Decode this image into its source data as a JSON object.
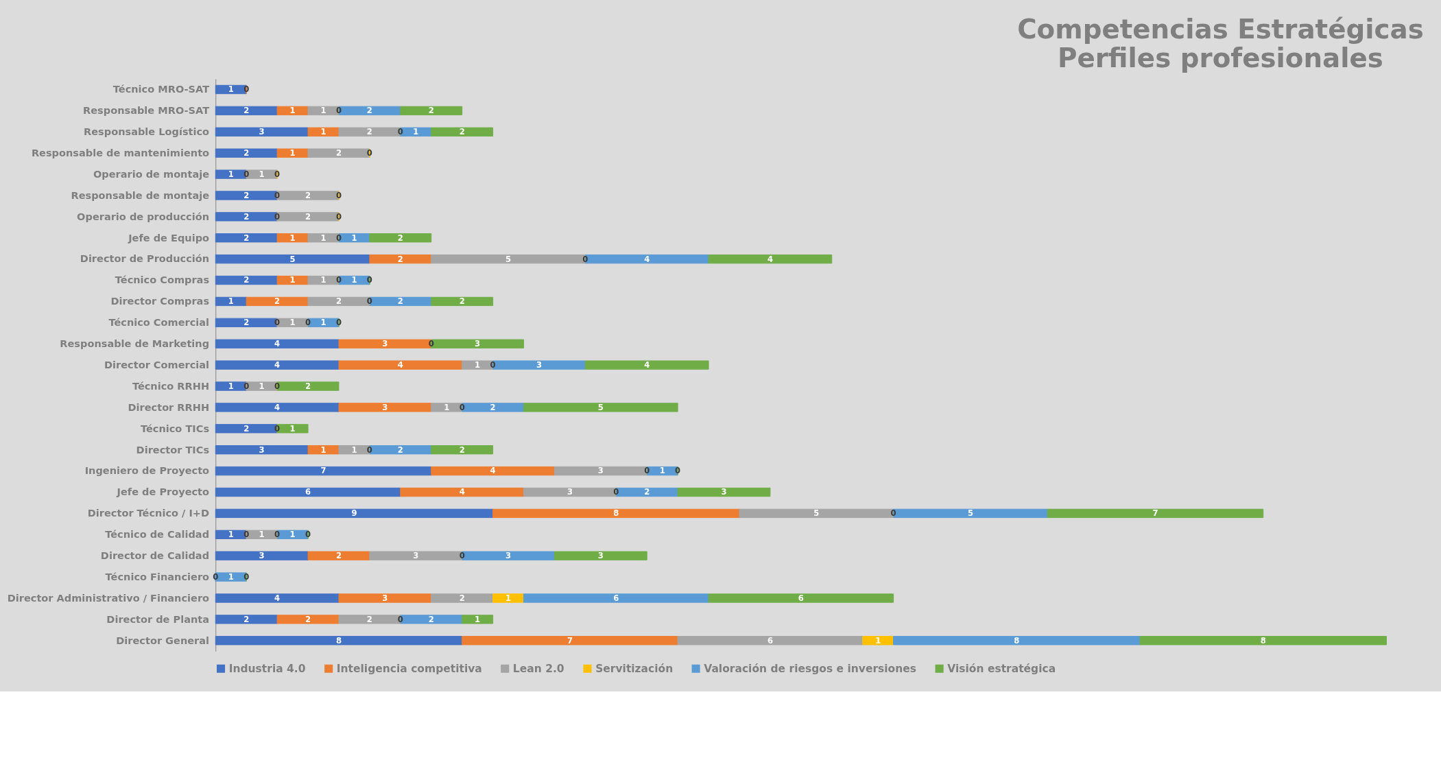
{
  "chart_data": {
    "type": "bar",
    "orientation": "horizontal",
    "stacked": true,
    "data_labels": true,
    "legend": "bottom",
    "tick_labels": "y",
    "title": "Competencias Estratégicas",
    "subtitle": "Perfiles profesionales",
    "categories": [
      "Técnico MRO-SAT",
      "Responsable MRO-SAT",
      "Responsable Logístico",
      "Responsable de mantenimiento",
      "Operario de montaje",
      "Responsable de montaje",
      "Operario de producción",
      "Jefe de Equipo",
      "Director de Producción",
      "Técnico Compras",
      "Director Compras",
      "Técnico Comercial",
      "Responsable de Marketing",
      "Director Comercial",
      "Técnico RRHH",
      "Director RRHH",
      "Técnico TICs",
      "Director TICs",
      "Ingeniero de Proyecto",
      "Jefe de Proyecto",
      "Director Técnico / I+D",
      "Técnico de Calidad",
      "Director de Calidad",
      "Técnico Financiero",
      "Director Administrativo / Financiero",
      "Director de Planta",
      "Director General"
    ],
    "series": [
      {
        "name": "Industria 4.0",
        "color": "#4472c4",
        "values": [
          1,
          2,
          3,
          2,
          1,
          2,
          2,
          2,
          5,
          2,
          1,
          2,
          4,
          4,
          1,
          4,
          2,
          3,
          7,
          6,
          9,
          1,
          3,
          0,
          4,
          2,
          8
        ]
      },
      {
        "name": "Inteligencia competitiva",
        "color": "#ed7d31",
        "values": [
          0,
          1,
          1,
          1,
          0,
          0,
          0,
          1,
          2,
          1,
          2,
          0,
          3,
          4,
          0,
          3,
          0,
          1,
          4,
          4,
          8,
          0,
          2,
          null,
          3,
          2,
          7
        ]
      },
      {
        "name": "Lean 2.0",
        "color": "#a5a5a5",
        "values": [
          null,
          1,
          2,
          2,
          1,
          2,
          2,
          1,
          5,
          1,
          2,
          1,
          0,
          1,
          1,
          1,
          null,
          1,
          3,
          3,
          5,
          1,
          3,
          null,
          2,
          2,
          6
        ]
      },
      {
        "name": "Servitización",
        "color": "#ffc000",
        "values": [
          null,
          0,
          0,
          0,
          0,
          0,
          0,
          0,
          0,
          0,
          0,
          0,
          null,
          0,
          0,
          0,
          null,
          0,
          0,
          0,
          0,
          0,
          0,
          null,
          1,
          0,
          1
        ]
      },
      {
        "name": "Valoración de riesgos e inversiones",
        "color": "#5b9bd5",
        "values": [
          null,
          2,
          1,
          null,
          null,
          null,
          null,
          1,
          4,
          1,
          2,
          1,
          null,
          3,
          null,
          2,
          null,
          2,
          1,
          2,
          5,
          1,
          3,
          1,
          6,
          2,
          8
        ]
      },
      {
        "name": "Visión estratégica",
        "color": "#70ad47",
        "values": [
          null,
          2,
          2,
          null,
          null,
          null,
          null,
          2,
          4,
          0,
          2,
          0,
          3,
          4,
          2,
          5,
          1,
          2,
          0,
          3,
          7,
          0,
          3,
          0,
          6,
          1,
          8
        ]
      }
    ]
  }
}
